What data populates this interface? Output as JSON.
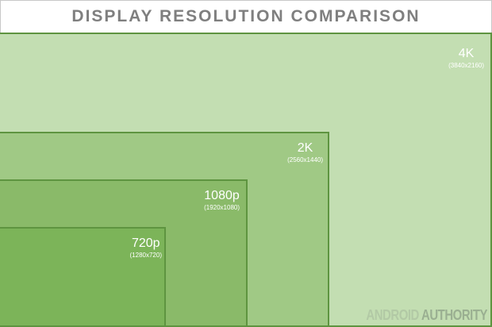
{
  "title": "DISPLAY RESOLUTION COMPARISON",
  "resolutions": [
    {
      "name": "4K",
      "dims": "(3840x2160)",
      "color": "#c3deb2"
    },
    {
      "name": "2K",
      "dims": "(2560x1440)",
      "color": "#a0c985"
    },
    {
      "name": "1080p",
      "dims": "(1920x1080)",
      "color": "#8aba69"
    },
    {
      "name": "720p",
      "dims": "(1280x720)",
      "color": "#7cb459"
    }
  ],
  "watermark": {
    "part1": "ANDROID",
    "part2": "AUTHORITY"
  }
}
